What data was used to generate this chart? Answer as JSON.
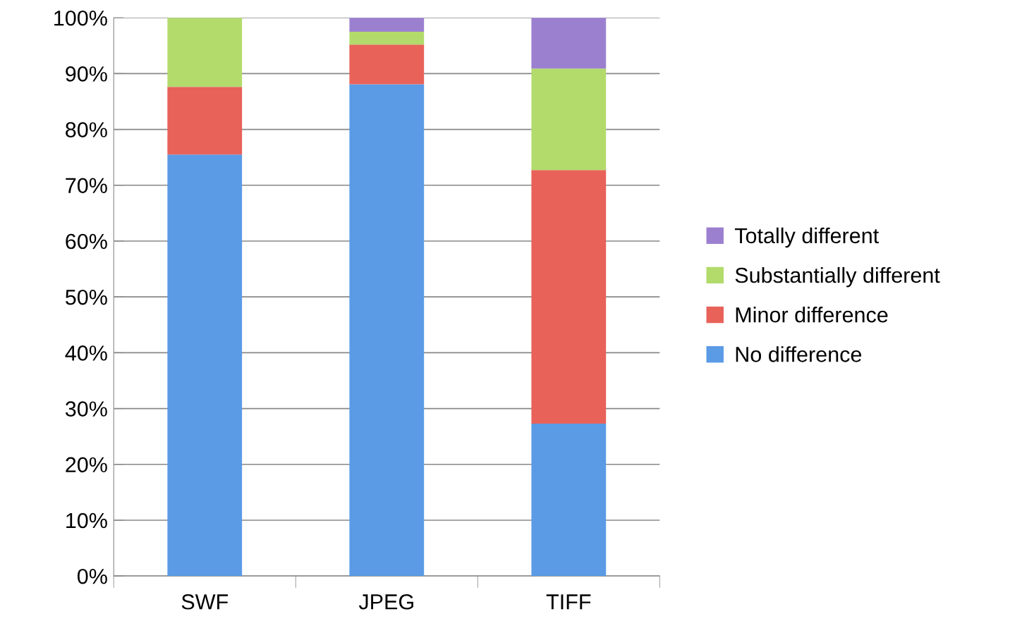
{
  "chart_data": {
    "type": "bar",
    "stacked": true,
    "categories": [
      "SWF",
      "JPEG",
      "TIFF"
    ],
    "series": [
      {
        "name": "No difference",
        "color": "#5b9be6",
        "values": [
          75.5,
          88.1,
          27.3
        ]
      },
      {
        "name": "Minor difference",
        "color": "#e8625a",
        "values": [
          12.1,
          7.1,
          45.4
        ]
      },
      {
        "name": "Substantially different",
        "color": "#b2db6c",
        "values": [
          12.4,
          2.3,
          18.2
        ]
      },
      {
        "name": "Totally different",
        "color": "#9c80d0",
        "values": [
          0,
          2.5,
          9.1
        ]
      }
    ],
    "ylim": [
      0,
      100
    ],
    "yticks": [
      {
        "value": 0,
        "label": "0%"
      },
      {
        "value": 10,
        "label": "10%"
      },
      {
        "value": 20,
        "label": "20%"
      },
      {
        "value": 30,
        "label": "30%"
      },
      {
        "value": 40,
        "label": "40%"
      },
      {
        "value": 50,
        "label": "50%"
      },
      {
        "value": 60,
        "label": "60%"
      },
      {
        "value": 70,
        "label": "70%"
      },
      {
        "value": 80,
        "label": "80%"
      },
      {
        "value": 90,
        "label": "90%"
      },
      {
        "value": 100,
        "label": "100%"
      }
    ],
    "grid": "y",
    "legend": "right"
  }
}
